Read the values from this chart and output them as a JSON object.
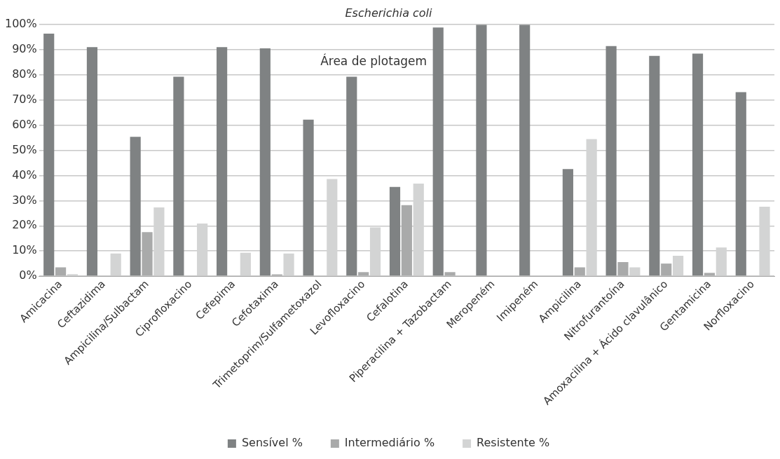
{
  "chart_data": {
    "type": "bar",
    "title": "Escherichia coli",
    "annotations": [
      "Área de plotagem"
    ],
    "categories": [
      "Amicacina",
      "Ceftazidima",
      "Ampicilina/Sulbactam",
      "Ciprofloxacino",
      "Cefepima",
      "Cefotaxima",
      "Trimetoprim/Sulfametoxazol",
      "Levofloxacino",
      "Cefalotina",
      "Piperacilina + Tazobactam",
      "Meropeném",
      "Imipeném",
      "Ampicilina",
      "Nitrofurantoína",
      "Amoxacilina + Ácido clavulânico",
      "Gentamicina",
      "Norfloxacino"
    ],
    "series": [
      {
        "name": "Sensível %",
        "color": "#7f8283",
        "values": [
          96.4,
          91.1,
          55.4,
          79.3,
          91.1,
          90.6,
          62.2,
          79.3,
          35.5,
          98.9,
          100,
          100,
          42.6,
          91.5,
          87.6,
          88.5,
          73.2
        ]
      },
      {
        "name": "Intermediário %",
        "color": "#a9aaaa",
        "values": [
          3.5,
          0,
          17.5,
          0,
          0,
          0.7,
          0,
          1.6,
          28.2,
          1.6,
          0,
          0,
          3.5,
          5.6,
          5.0,
          1.3,
          0
        ]
      },
      {
        "name": "Resistente %",
        "color": "#d3d4d4",
        "values": [
          0.8,
          9.0,
          27.3,
          20.9,
          9.3,
          9.0,
          38.6,
          19.4,
          36.8,
          0,
          0,
          0,
          54.5,
          3.5,
          8.1,
          11.4,
          27.6
        ]
      }
    ],
    "ylim": [
      0,
      100
    ],
    "yticks": [
      {
        "value": 0,
        "label": "0%"
      },
      {
        "value": 10,
        "label": "10%"
      },
      {
        "value": 20,
        "label": "20%"
      },
      {
        "value": 30,
        "label": "30%"
      },
      {
        "value": 40,
        "label": "40%"
      },
      {
        "value": 50,
        "label": "50%"
      },
      {
        "value": 60,
        "label": "60%"
      },
      {
        "value": 70,
        "label": "70%"
      },
      {
        "value": 80,
        "label": "80%"
      },
      {
        "value": 90,
        "label": "90%"
      },
      {
        "value": 100,
        "label": "100%"
      }
    ],
    "grid": "y",
    "legend": "bottom"
  }
}
